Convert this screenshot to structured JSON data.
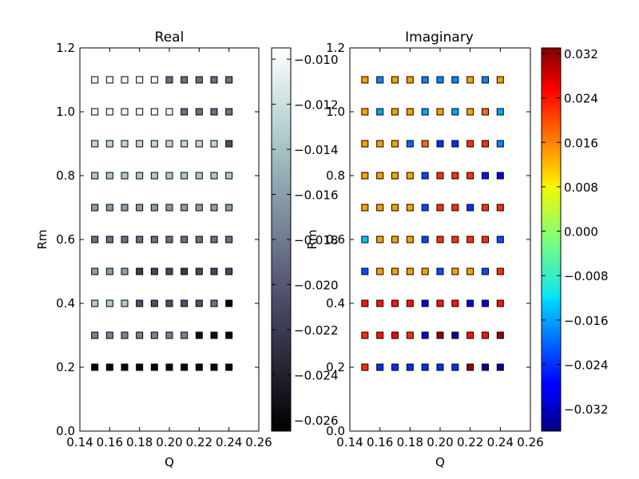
{
  "chart_data": [
    {
      "type": "scatter",
      "title": "Real",
      "xlabel": "Q",
      "ylabel": "Rm",
      "xlim": [
        0.14,
        0.26
      ],
      "ylim": [
        0.0,
        1.2
      ],
      "xticks": [
        "0.14",
        "0.16",
        "0.18",
        "0.20",
        "0.22",
        "0.24",
        "0.26"
      ],
      "yticks": [
        "0.0",
        "0.2",
        "0.4",
        "0.6",
        "0.8",
        "1.0",
        "1.2"
      ],
      "colormap": "bone",
      "marker": "square",
      "x": [
        0.15,
        0.16,
        0.17,
        0.18,
        0.19,
        0.2,
        0.21,
        0.22,
        0.23,
        0.24
      ],
      "y": [
        0.2,
        0.3,
        0.4,
        0.5,
        0.6,
        0.7,
        0.8,
        0.9,
        1.0,
        1.1
      ],
      "values": [
        [
          -0.0262,
          -0.0262,
          -0.0262,
          -0.0262,
          -0.0262,
          -0.0262,
          -0.0262,
          -0.0262,
          -0.0262,
          -0.0262
        ],
        [
          -0.0175,
          -0.0175,
          -0.0175,
          -0.0175,
          -0.0175,
          -0.0175,
          -0.0175,
          -0.0258,
          -0.0258,
          -0.0258
        ],
        [
          -0.0135,
          -0.0135,
          -0.0135,
          -0.0205,
          -0.0205,
          -0.0205,
          -0.0205,
          -0.0205,
          -0.0185,
          -0.0262
        ],
        [
          -0.016,
          -0.016,
          -0.016,
          -0.022,
          -0.021,
          -0.021,
          -0.022,
          -0.021,
          -0.021,
          -0.021
        ],
        [
          -0.0185,
          -0.0185,
          -0.0185,
          -0.0185,
          -0.0185,
          -0.0185,
          -0.0185,
          -0.0185,
          -0.0185,
          -0.0185
        ],
        [
          -0.016,
          -0.016,
          -0.016,
          -0.016,
          -0.016,
          -0.016,
          -0.016,
          -0.016,
          -0.016,
          -0.016
        ],
        [
          -0.0135,
          -0.0135,
          -0.0135,
          -0.0135,
          -0.0135,
          -0.0135,
          -0.0135,
          -0.0135,
          -0.0135,
          -0.0135
        ],
        [
          -0.0125,
          -0.0125,
          -0.0125,
          -0.0125,
          -0.0125,
          -0.0125,
          -0.0125,
          -0.0125,
          -0.0125,
          -0.0205
        ],
        [
          -0.0102,
          -0.0102,
          -0.0102,
          -0.0102,
          -0.0102,
          -0.0102,
          -0.0185,
          -0.0185,
          -0.0185,
          -0.0185
        ],
        [
          -0.01,
          -0.01,
          -0.01,
          -0.01,
          -0.01,
          -0.0185,
          -0.0185,
          -0.0185,
          -0.0185,
          -0.0185
        ]
      ],
      "colorbar": {
        "min": -0.0265,
        "max": -0.0095,
        "ticks": [
          -0.01,
          -0.012,
          -0.014,
          -0.016,
          -0.018,
          -0.02,
          -0.022,
          -0.024,
          -0.026
        ],
        "tick_labels": [
          "−0.010",
          "−0.012",
          "−0.014",
          "−0.016",
          "−0.018",
          "−0.020",
          "−0.022",
          "−0.024",
          "−0.026"
        ]
      }
    },
    {
      "type": "scatter",
      "title": "Imaginary",
      "xlabel": "Q",
      "ylabel": "Rm",
      "xlim": [
        0.14,
        0.26
      ],
      "ylim": [
        0.0,
        1.2
      ],
      "xticks": [
        "0.14",
        "0.16",
        "0.18",
        "0.20",
        "0.22",
        "0.24",
        "0.26"
      ],
      "yticks": [
        "0.0",
        "0.2",
        "0.4",
        "0.6",
        "0.8",
        "1.0",
        "1.2"
      ],
      "colormap": "jet",
      "marker": "square",
      "x": [
        0.15,
        0.16,
        0.17,
        0.18,
        0.19,
        0.2,
        0.21,
        0.22,
        0.23,
        0.24
      ],
      "y": [
        0.2,
        0.3,
        0.4,
        0.5,
        0.6,
        0.7,
        0.8,
        0.9,
        1.0,
        1.1
      ],
      "values": [
        [
          0.022,
          -0.024,
          -0.024,
          -0.024,
          -0.024,
          -0.024,
          -0.024,
          0.032,
          -0.034,
          -0.034
        ],
        [
          0.022,
          0.024,
          0.026,
          0.022,
          -0.03,
          0.032,
          -0.034,
          0.024,
          0.024,
          0.032
        ],
        [
          0.024,
          0.024,
          0.024,
          0.024,
          -0.03,
          0.024,
          0.024,
          -0.03,
          -0.03,
          0.024
        ],
        [
          -0.022,
          0.014,
          0.014,
          0.014,
          0.014,
          -0.022,
          0.014,
          0.014,
          -0.022,
          0.022
        ],
        [
          -0.014,
          0.014,
          0.014,
          0.014,
          -0.022,
          0.022,
          0.022,
          0.022,
          0.022,
          -0.022
        ],
        [
          0.014,
          0.014,
          0.014,
          0.014,
          -0.022,
          0.022,
          0.022,
          -0.024,
          0.022,
          0.022
        ],
        [
          0.014,
          0.014,
          0.014,
          0.014,
          -0.022,
          0.022,
          0.022,
          0.022,
          -0.026,
          -0.03
        ],
        [
          0.014,
          0.014,
          0.014,
          -0.02,
          0.018,
          -0.024,
          -0.024,
          0.022,
          0.022,
          -0.018
        ],
        [
          0.014,
          -0.016,
          0.014,
          0.014,
          -0.016,
          0.014,
          -0.016,
          0.014,
          0.018,
          -0.016
        ],
        [
          0.014,
          -0.018,
          0.014,
          0.014,
          -0.018,
          -0.018,
          -0.018,
          0.014,
          -0.018,
          0.014
        ]
      ],
      "colorbar": {
        "min": -0.036,
        "max": 0.033,
        "ticks": [
          0.032,
          0.024,
          0.016,
          0.008,
          0.0,
          -0.008,
          -0.016,
          -0.024,
          -0.032
        ],
        "tick_labels": [
          "0.032",
          "0.024",
          "0.016",
          "0.008",
          "0.000",
          "−0.008",
          "−0.016",
          "−0.024",
          "−0.032"
        ]
      }
    }
  ]
}
